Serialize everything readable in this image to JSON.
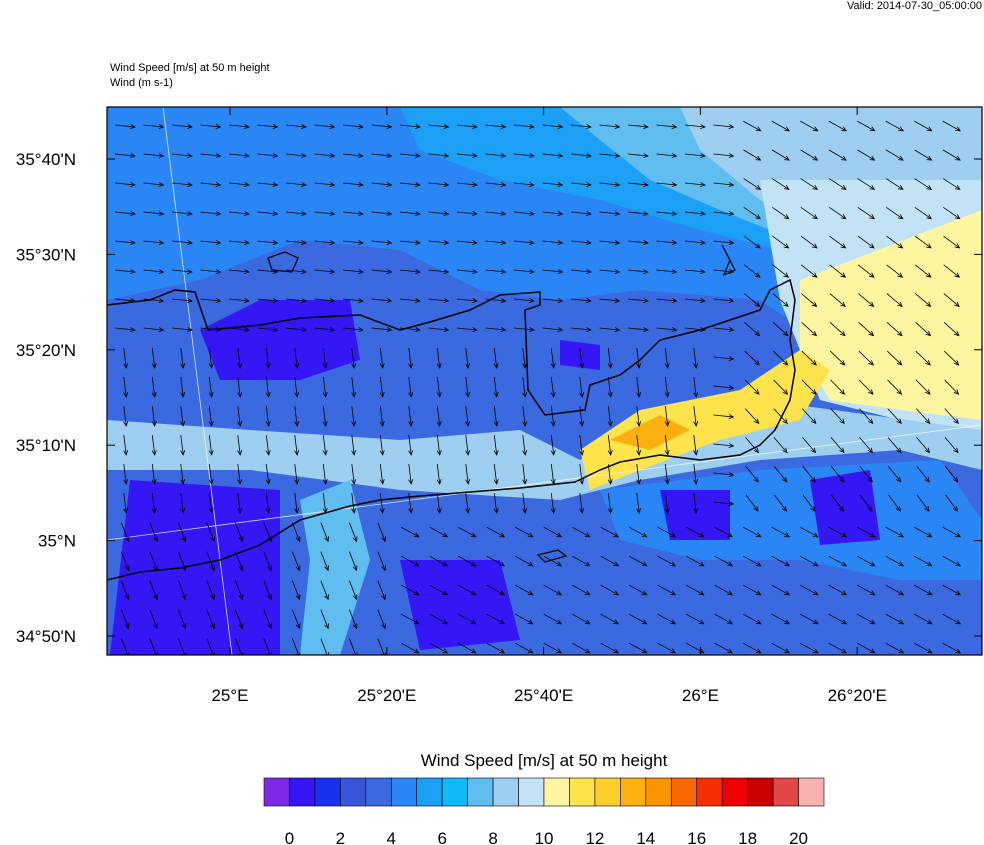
{
  "header": {
    "valid": "Valid: 2014-07-30_05:00:00",
    "title": "Wind Speed [m/s] at 50 m height",
    "subtitle": "Wind   (m s-1)"
  },
  "map": {
    "lat_labels": [
      "35°40'N",
      "35°30'N",
      "35°20'N",
      "35°10'N",
      "35°N",
      "34°50'N"
    ],
    "lon_labels": [
      "25°E",
      "25°20'E",
      "25°40'E",
      "26°E",
      "26°20'E"
    ]
  },
  "colorbar": {
    "title": "Wind Speed [m/s] at 50 m height",
    "colors": [
      "#7d29e5",
      "#3516f5",
      "#1a30f0",
      "#3856da",
      "#3b6ae0",
      "#2a86f5",
      "#1ca0f5",
      "#10baf7",
      "#5fbdf0",
      "#9ecff0",
      "#c2e3f5",
      "#fef5a0",
      "#fde34c",
      "#fdcd2c",
      "#fbb010",
      "#fa9400",
      "#f86800",
      "#f82d00",
      "#ee0000",
      "#c80000",
      "#e04848",
      "#fbb0b0"
    ],
    "ticks": [
      0,
      2,
      4,
      6,
      8,
      10,
      12,
      14,
      16,
      18,
      20
    ]
  }
}
